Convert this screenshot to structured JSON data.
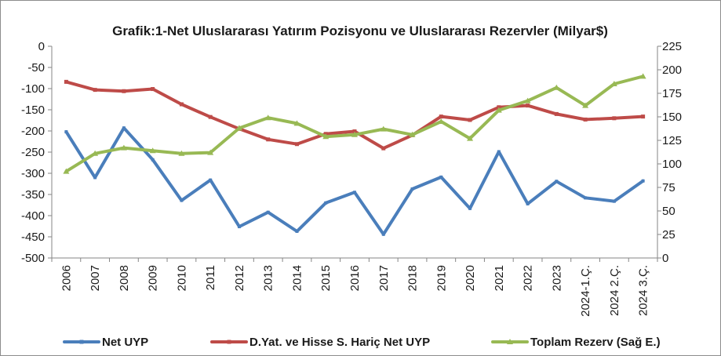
{
  "chart_data": {
    "type": "line",
    "title": "Grafik:1-Net Uluslararası Yatırım Pozisyonu ve Uluslararası Rezervler (Milyar$)",
    "categories": [
      "2006",
      "2007",
      "2008",
      "2009",
      "2010",
      "2011",
      "2012",
      "2013",
      "2014",
      "2015",
      "2016",
      "2017",
      "2018",
      "2019",
      "2020",
      "2021",
      "2022",
      "2023",
      "2024-1.Ç.",
      "2024 2.Ç.",
      "2024 3.Ç."
    ],
    "y_left": {
      "ylim": [
        -500,
        0
      ],
      "ticks": [
        "0",
        "-50",
        "-100",
        "-150",
        "-200",
        "-250",
        "-300",
        "-350",
        "-400",
        "-450",
        "-500"
      ],
      "tick_values": [
        0,
        -50,
        -100,
        -150,
        -200,
        -250,
        -300,
        -350,
        -400,
        -450,
        -500
      ]
    },
    "y_right": {
      "ylim": [
        0,
        225
      ],
      "ticks": [
        "225",
        "200",
        "175",
        "150",
        "125",
        "100",
        "75",
        "50",
        "25",
        "0"
      ],
      "tick_values": [
        225,
        200,
        175,
        150,
        125,
        100,
        75,
        50,
        25,
        0
      ]
    },
    "grid": false,
    "legend_position": "bottom",
    "series": [
      {
        "name": "Net UYP",
        "axis": "left",
        "color": "#4a7ebb",
        "values": [
          -202,
          -310,
          -193,
          -268,
          -364,
          -316,
          -426,
          -392,
          -437,
          -370,
          -345,
          -444,
          -337,
          -309,
          -383,
          -249,
          -372,
          -319,
          -358,
          -366,
          -318
        ]
      },
      {
        "name": "D.Yat. ve Hisse S. Hariç Net UYP",
        "axis": "left",
        "color": "#be4b48",
        "values": [
          -84,
          -103,
          -106,
          -101,
          -137,
          -167,
          -195,
          -220,
          -231,
          -207,
          -201,
          -241,
          -210,
          -166,
          -174,
          -144,
          -140,
          -160,
          -173,
          -170,
          -166
        ]
      },
      {
        "name": "Toplam Rezerv (Sağ E.)",
        "axis": "right",
        "color": "#98b954",
        "values": [
          92,
          111,
          117,
          114,
          111,
          112,
          138,
          149,
          143,
          129,
          131,
          137,
          131,
          145,
          127,
          157,
          167,
          181,
          162,
          185,
          193
        ]
      }
    ]
  }
}
